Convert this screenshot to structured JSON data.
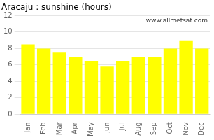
{
  "chart_data": {
    "type": "bar",
    "title": "Aracaju : sunshine (hours)",
    "categories": [
      "Jan",
      "Feb",
      "Mar",
      "Apr",
      "May",
      "Jun",
      "Jul",
      "Aug",
      "Sep",
      "Oct",
      "Nov",
      "Dec"
    ],
    "values": [
      8.5,
      8.0,
      7.5,
      7.0,
      6.5,
      5.8,
      6.5,
      7.0,
      7.0,
      8.0,
      9.0,
      8.0
    ],
    "color": "#FFFF00",
    "ylim": [
      0,
      12
    ],
    "yticks": [
      0,
      2,
      4,
      6,
      8,
      10,
      12
    ],
    "grid": true,
    "annotations": [
      "www.allmetsat.com"
    ]
  }
}
